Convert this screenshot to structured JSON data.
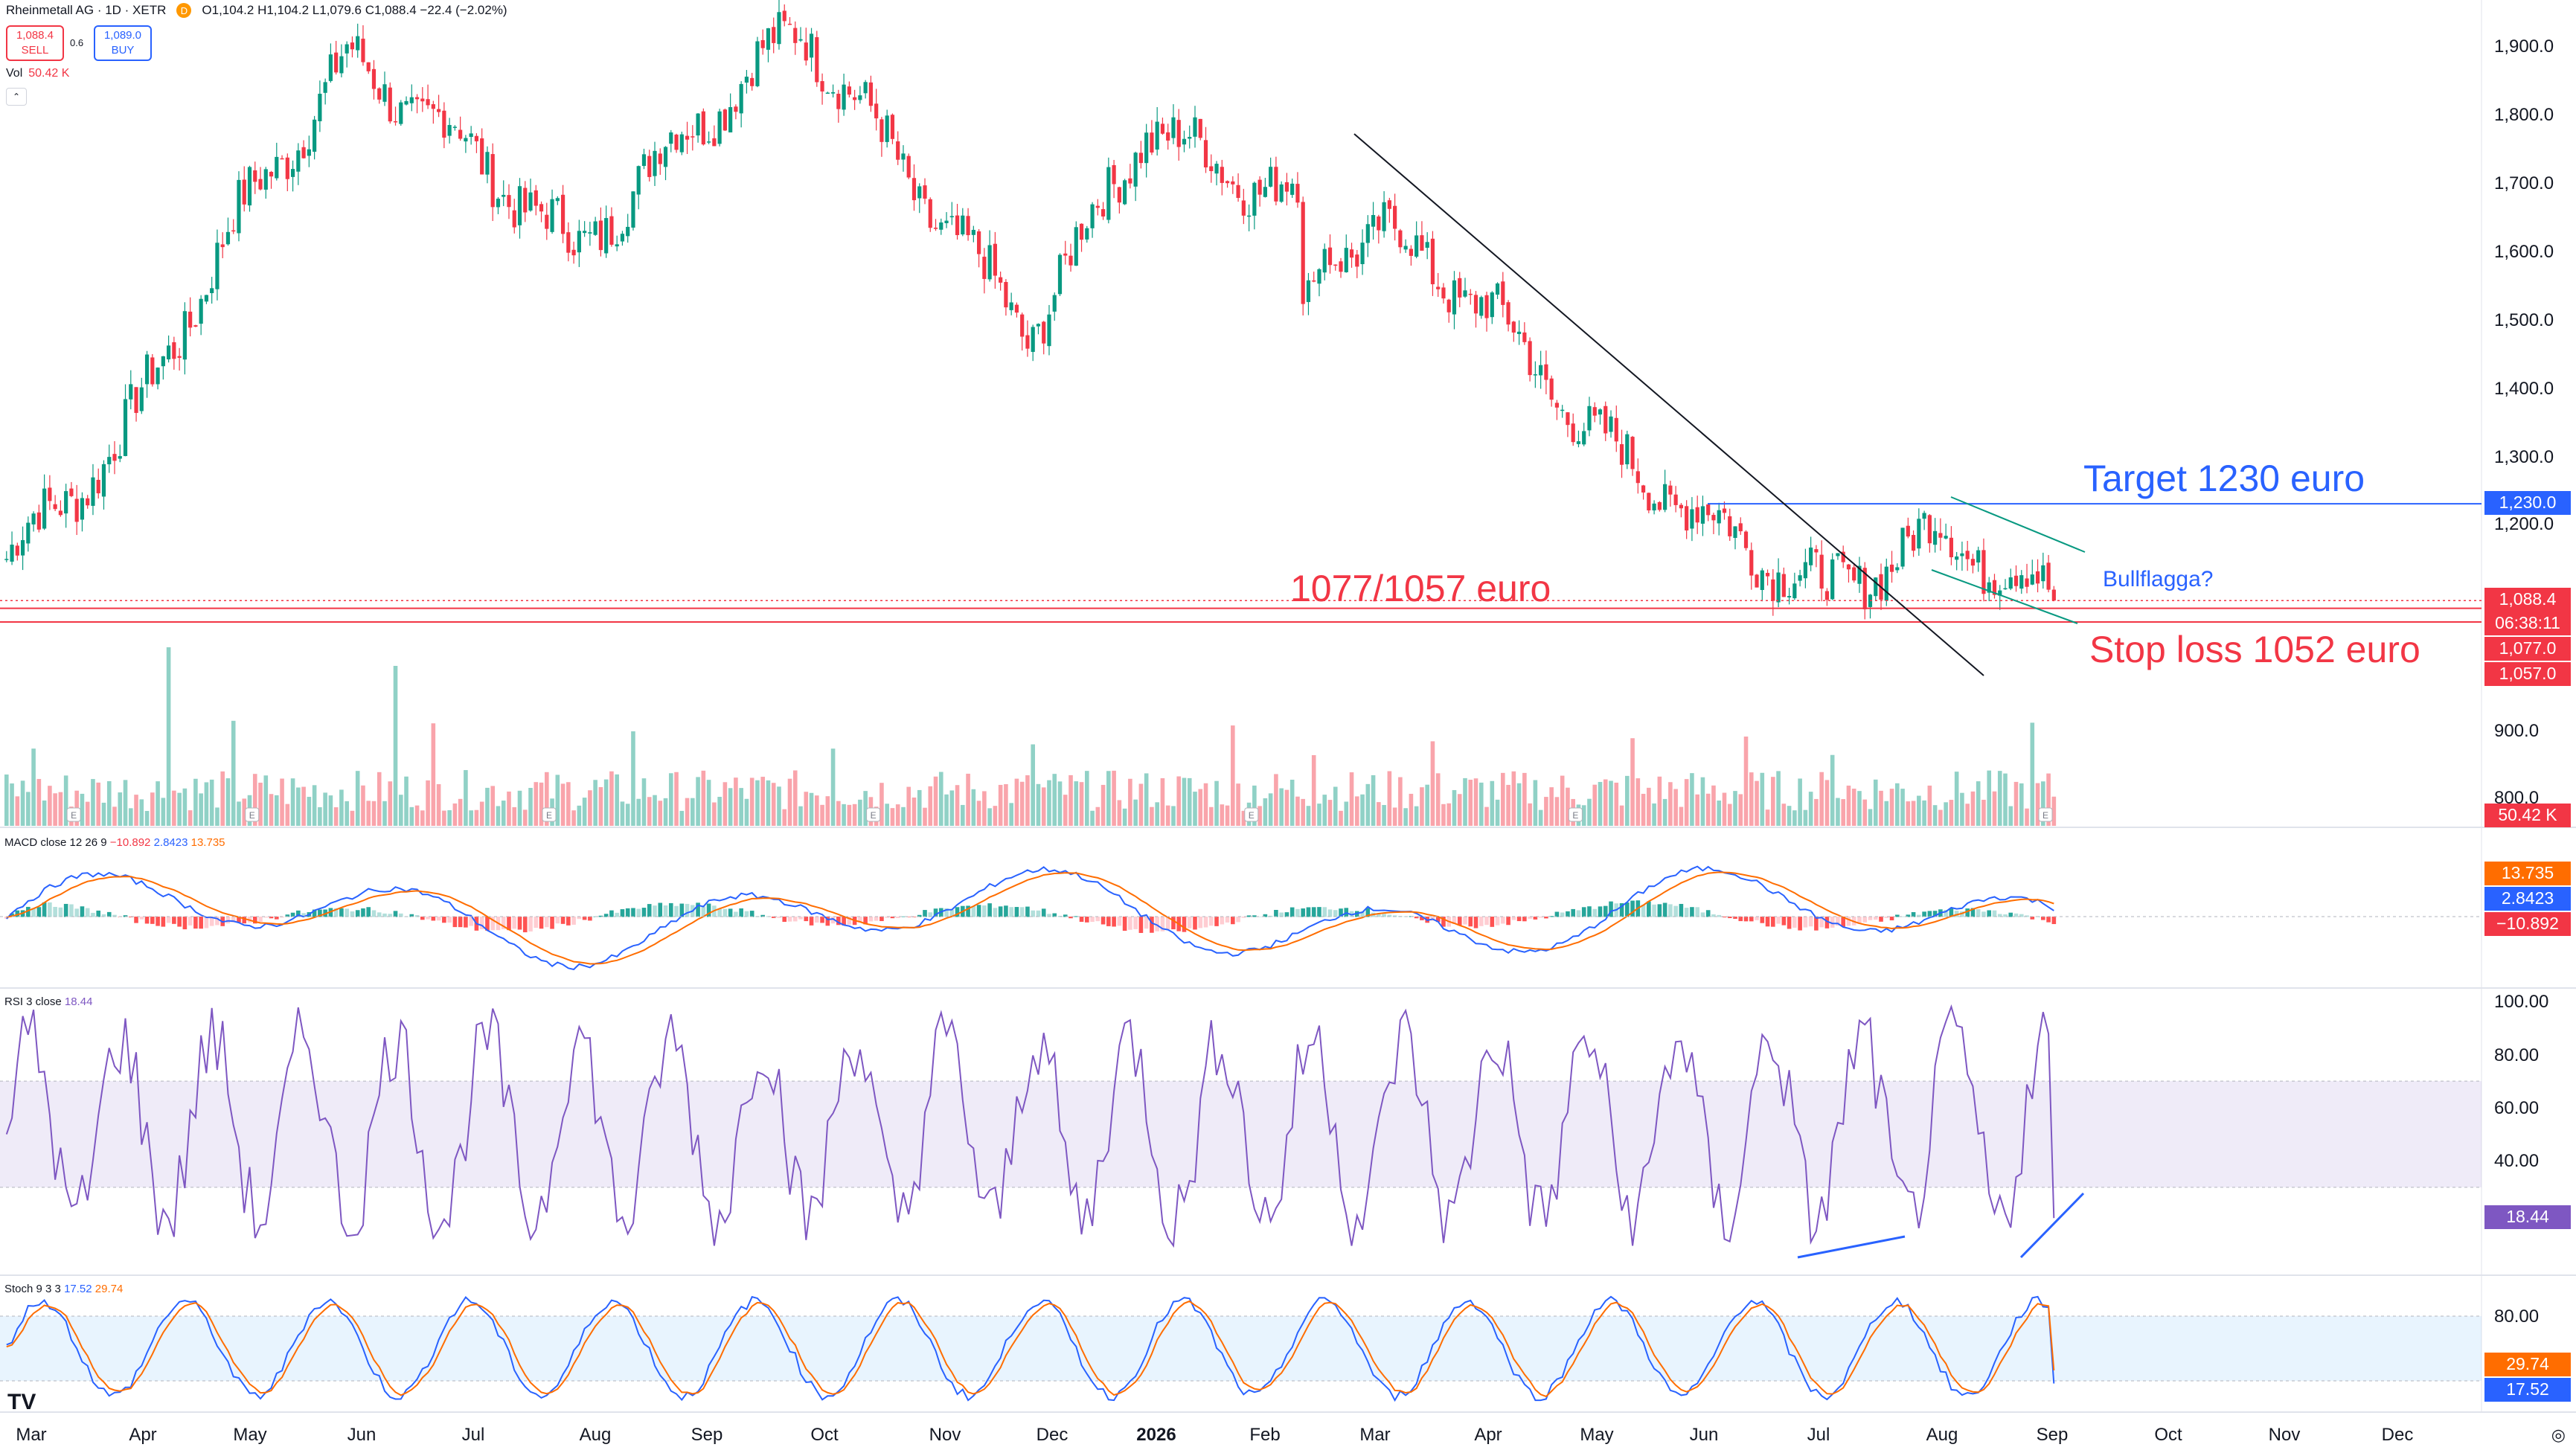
{
  "header": {
    "title": "Rheinmetall AG · 1D · XETR",
    "marker": "D",
    "ohlc": "O1,104.2 H1,104.2 L1,079.6 C1,088.4 −22.4 (−2.02%)",
    "sell_price": "1,088.4",
    "sell_label": "SELL",
    "spread": "0.6",
    "buy_price": "1,089.0",
    "buy_label": "BUY",
    "vol_label": "Vol",
    "vol_value": "50.42 K"
  },
  "price_axis": {
    "ticks": [
      "1,900.0",
      "1,800.0",
      "1,700.0",
      "1,600.0",
      "1,500.0",
      "1,400.0",
      "1,300.0",
      "1,200.0",
      "900.0",
      "800.0"
    ],
    "badges": {
      "target": "1,230.0",
      "last": "1,088.4",
      "countdown": "06:38:11",
      "level_upper": "1,077.0",
      "level_lower": "1,057.0",
      "volume": "50.42 K"
    }
  },
  "annotations": {
    "target": "Target 1230 euro",
    "support": "1077/1057 euro",
    "stop": "Stop loss 1052 euro",
    "flag": "Bullflagga?"
  },
  "macd": {
    "label": "MACD close 12 26 9",
    "values": [
      "−10.892",
      "2.8423",
      "13.735"
    ],
    "badges": [
      "13.735",
      "2.8423",
      "−10.892"
    ]
  },
  "rsi": {
    "label": "RSI 3 close",
    "value": "18.44",
    "ticks": [
      "100.00",
      "80.00",
      "60.00",
      "40.00"
    ],
    "badge": "18.44"
  },
  "stoch": {
    "label": "Stoch 9 3 3",
    "values": [
      "17.52",
      "29.74"
    ],
    "ticks": [
      "80.00"
    ],
    "badges": [
      "29.74",
      "17.52"
    ]
  },
  "time_axis": [
    "Mar",
    "Apr",
    "May",
    "Jun",
    "Jul",
    "Aug",
    "Sep",
    "Oct",
    "Nov",
    "Dec",
    "2026",
    "Feb",
    "Mar",
    "Apr",
    "May",
    "Jun",
    "Jul",
    "Aug",
    "Sep",
    "Oct",
    "Nov",
    "Dec"
  ],
  "earnings_marker": "E",
  "logo": "TV",
  "colors": {
    "up": "#089981",
    "down": "#f23645",
    "target": "#2962ff",
    "macd": "#2962ff",
    "signal": "#ff6d00",
    "rsi": "#7e57c2"
  },
  "chart_data": {
    "type": "candlestick",
    "title": "Rheinmetall AG · 1D · XETR",
    "ylim": [
      750,
      1960
    ],
    "price_anchors": {
      "x_months": [
        "Mar",
        "Apr",
        "May",
        "Jun",
        "Jul",
        "Aug",
        "Sep",
        "Oct",
        "Nov",
        "Dec",
        "Jan",
        "Feb",
        "Mar",
        "Apr",
        "May",
        "Jun",
        "Jul",
        "Aug",
        "Sep"
      ],
      "close_approx": [
        1150,
        1320,
        1640,
        1880,
        1760,
        1600,
        1780,
        1930,
        1690,
        1480,
        1780,
        1700,
        1640,
        1520,
        1320,
        1200,
        1100,
        1190,
        1088.4
      ]
    },
    "levels": [
      1230,
      1077,
      1057
    ],
    "last_close": 1088.4
  }
}
